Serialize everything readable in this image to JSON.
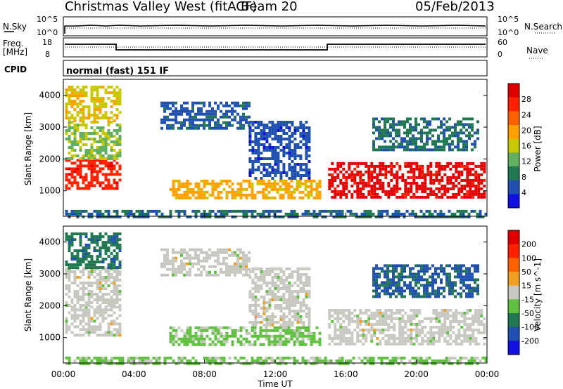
{
  "header": {
    "station": "Christmas Valley West (fitACF)",
    "beam": "Beam 20",
    "date": "05/Feb/2013"
  },
  "side_labels": {
    "nsky": "N.Sky",
    "nsearch": "N.Search",
    "freq_line1": "Freq.",
    "freq_line2": "[MHz]",
    "nave": "Nave",
    "cpid": "CPID",
    "cpid_value": "normal (fast) 151 IF"
  },
  "noise_axis": {
    "ticks_left": [
      "10^5",
      "10^0"
    ],
    "ticks_right": [
      "10^5",
      "10^0"
    ]
  },
  "freq_axis": {
    "ticks_left": [
      "18",
      "8"
    ],
    "ticks_right": [
      "60",
      "0"
    ]
  },
  "x_axis": {
    "label": "Time UT",
    "ticks": [
      "00:00",
      "04:00",
      "08:00",
      "12:00",
      "16:00",
      "20:00",
      "00:00"
    ]
  },
  "chart_data": [
    {
      "type": "heatmap",
      "name": "power",
      "ylabel": "Slant Range [km]",
      "yticks": [
        1000,
        2000,
        3000,
        4000
      ],
      "ylim": [
        200,
        4500
      ],
      "xlim_hours": [
        0,
        24
      ],
      "colorbar": {
        "label": "Power [dB]",
        "ticks": [
          "28",
          "24",
          "20",
          "16",
          "12",
          "8",
          "4"
        ],
        "colors": [
          "#1010e0",
          "#2050b0",
          "#207850",
          "#60b060",
          "#c8c800",
          "#ffa000",
          "#ff6000",
          "#ff2000",
          "#e00000"
        ],
        "range": [
          0,
          32
        ]
      },
      "regions": [
        {
          "t0": 0.1,
          "t1": 3.2,
          "r0": 1100,
          "r1": 2000,
          "value": 27
        },
        {
          "t0": 0.1,
          "t1": 3.2,
          "r0": 2000,
          "r1": 3200,
          "value": 14
        },
        {
          "t0": 0.1,
          "t1": 3.2,
          "r0": 3200,
          "r1": 4300,
          "value": 17
        },
        {
          "t0": 5.5,
          "t1": 10.5,
          "r0": 3000,
          "r1": 3800,
          "value": 6
        },
        {
          "t0": 10.5,
          "t1": 14.0,
          "r0": 1400,
          "r1": 3200,
          "value": 5
        },
        {
          "t0": 6.0,
          "t1": 14.5,
          "r0": 750,
          "r1": 1350,
          "value": 19
        },
        {
          "t0": 15.0,
          "t1": 23.9,
          "r0": 800,
          "r1": 1900,
          "value": 30
        },
        {
          "t0": 17.5,
          "t1": 23.5,
          "r0": 2300,
          "r1": 3300,
          "value": 8
        },
        {
          "t0": 0.1,
          "t1": 23.9,
          "r0": 200,
          "r1": 400,
          "value": 7
        }
      ]
    },
    {
      "type": "heatmap",
      "name": "velocity",
      "ylabel": "Slant Range [km]",
      "yticks": [
        1000,
        2000,
        3000,
        4000
      ],
      "ylim": [
        200,
        4500
      ],
      "xlim_hours": [
        0,
        24
      ],
      "colorbar": {
        "label": "Velocity [m s^-1]",
        "ticks": [
          "200",
          "100",
          "50",
          "15",
          "-15",
          "-50",
          "-100",
          "-200"
        ],
        "colors": [
          "#1010e0",
          "#2050b0",
          "#207850",
          "#60c040",
          "#c8c8c0",
          "#f0a020",
          "#ff6000",
          "#ff2000",
          "#e00000"
        ],
        "range": [
          -250,
          250
        ]
      },
      "regions": [
        {
          "t0": 0.1,
          "t1": 3.2,
          "r0": 1100,
          "r1": 2000,
          "value": 0
        },
        {
          "t0": 0.1,
          "t1": 3.2,
          "r0": 2000,
          "r1": 3200,
          "value": 0
        },
        {
          "t0": 0.1,
          "t1": 3.2,
          "r0": 3200,
          "r1": 4300,
          "value": -120
        },
        {
          "t0": 5.5,
          "t1": 10.5,
          "r0": 3000,
          "r1": 3800,
          "value": 0
        },
        {
          "t0": 10.5,
          "t1": 14.0,
          "r0": 1400,
          "r1": 3200,
          "value": 0
        },
        {
          "t0": 6.0,
          "t1": 14.5,
          "r0": 750,
          "r1": 1350,
          "value": -40
        },
        {
          "t0": 15.0,
          "t1": 23.9,
          "r0": 800,
          "r1": 1900,
          "value": 0
        },
        {
          "t0": 17.5,
          "t1": 23.5,
          "r0": 2300,
          "r1": 3300,
          "value": -150
        },
        {
          "t0": 0.1,
          "t1": 23.9,
          "r0": 200,
          "r1": 400,
          "value": -40
        }
      ]
    }
  ]
}
